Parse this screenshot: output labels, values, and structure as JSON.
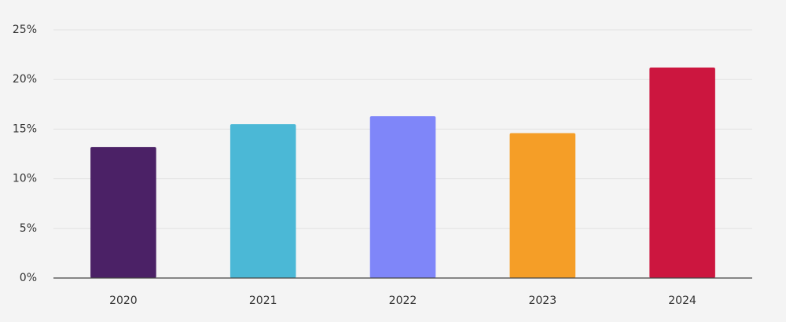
{
  "chart_data": {
    "type": "bar",
    "categories": [
      "2020",
      "2021",
      "2022",
      "2023",
      "2024"
    ],
    "values": [
      13.2,
      15.5,
      16.3,
      14.6,
      21.2
    ],
    "colors": [
      "#4b2166",
      "#4bb8d6",
      "#7f86f9",
      "#f59e27",
      "#cc163f"
    ],
    "ylim": [
      0,
      25
    ],
    "yticks": [
      {
        "value": 0,
        "label": "0%"
      },
      {
        "value": 5,
        "label": "5%"
      },
      {
        "value": 10,
        "label": "10%"
      },
      {
        "value": 15,
        "label": "15%"
      },
      {
        "value": 20,
        "label": "20%"
      },
      {
        "value": 25,
        "label": "25%"
      }
    ],
    "grid": true
  }
}
